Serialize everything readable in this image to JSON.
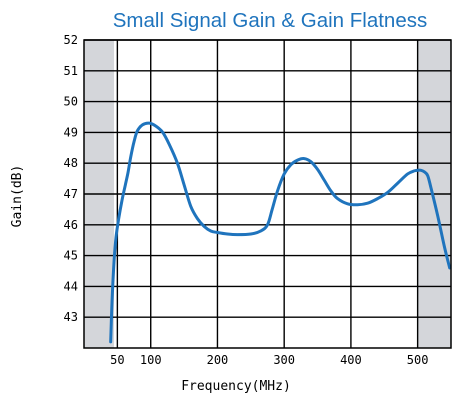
{
  "colors": {
    "series": "#1f74bd",
    "title": "#1f74bd",
    "band": "#d4d6da",
    "grid": "#000000"
  },
  "chart_data": {
    "type": "line",
    "title": "Small Signal Gain & Gain Flatness",
    "xlabel": "Frequency(MHz)",
    "ylabel": "Gain(dB)",
    "xlim": [
      0,
      550
    ],
    "ylim": [
      42,
      52
    ],
    "x_ticks": [
      50,
      100,
      200,
      300,
      400,
      500
    ],
    "y_ticks": [
      43,
      44,
      45,
      46,
      47,
      48,
      49,
      50,
      51,
      52
    ],
    "grid": true,
    "legend": "none",
    "shaded_x_ranges": [
      [
        0,
        45
      ],
      [
        500,
        550
      ]
    ],
    "series": [
      {
        "x": [
          40,
          42,
          45,
          48,
          52,
          57,
          62,
          66,
          70,
          75,
          80,
          88,
          98,
          108,
          118,
          128,
          140,
          150,
          160,
          170,
          180,
          190,
          200,
          215,
          230,
          250,
          265,
          275,
          282,
          290,
          300,
          310,
          320,
          330,
          340,
          350,
          360,
          370,
          380,
          395,
          410,
          425,
          440,
          455,
          470,
          485,
          495,
          500,
          505,
          510,
          515,
          520,
          530,
          540,
          548
        ],
        "y": [
          42.2,
          43.5,
          44.8,
          45.6,
          46.2,
          46.8,
          47.3,
          47.7,
          48.2,
          48.7,
          49.05,
          49.25,
          49.3,
          49.2,
          49.0,
          48.6,
          48.0,
          47.3,
          46.6,
          46.2,
          45.95,
          45.8,
          45.75,
          45.7,
          45.68,
          45.7,
          45.8,
          46.0,
          46.5,
          47.1,
          47.65,
          47.95,
          48.1,
          48.15,
          48.05,
          47.8,
          47.45,
          47.1,
          46.85,
          46.68,
          46.65,
          46.7,
          46.85,
          47.05,
          47.35,
          47.65,
          47.75,
          47.77,
          47.77,
          47.72,
          47.6,
          47.2,
          46.3,
          45.3,
          44.6
        ]
      }
    ]
  }
}
